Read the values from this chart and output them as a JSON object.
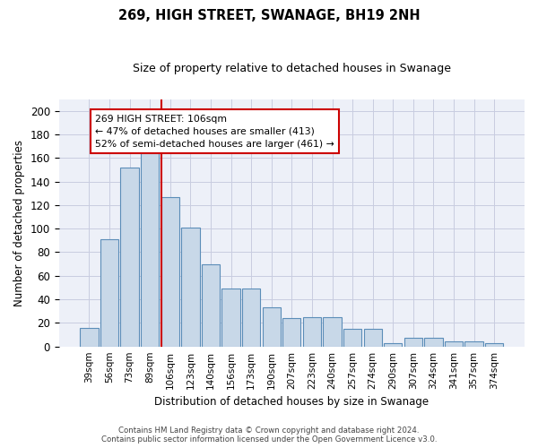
{
  "title": "269, HIGH STREET, SWANAGE, BH19 2NH",
  "subtitle": "Size of property relative to detached houses in Swanage",
  "xlabel": "Distribution of detached houses by size in Swanage",
  "ylabel": "Number of detached properties",
  "bar_labels": [
    "39sqm",
    "56sqm",
    "73sqm",
    "89sqm",
    "106sqm",
    "123sqm",
    "140sqm",
    "156sqm",
    "173sqm",
    "190sqm",
    "207sqm",
    "223sqm",
    "240sqm",
    "257sqm",
    "274sqm",
    "290sqm",
    "307sqm",
    "324sqm",
    "341sqm",
    "357sqm",
    "374sqm"
  ],
  "bar_values": [
    16,
    91,
    152,
    165,
    127,
    101,
    70,
    49,
    49,
    33,
    24,
    25,
    25,
    15,
    15,
    3,
    7,
    7,
    4,
    4,
    3
  ],
  "bar_color": "#c8d8e8",
  "bar_edge_color": "#5b8db8",
  "grid_color": "#c8cce0",
  "bg_color": "#edf0f8",
  "red_line_index": 4,
  "annotation_text": "269 HIGH STREET: 106sqm\n← 47% of detached houses are smaller (413)\n52% of semi-detached houses are larger (461) →",
  "annotation_box_color": "#ffffff",
  "annotation_box_edge": "#cc0000",
  "footer_line1": "Contains HM Land Registry data © Crown copyright and database right 2024.",
  "footer_line2": "Contains public sector information licensed under the Open Government Licence v3.0.",
  "ylim": [
    0,
    210
  ],
  "yticks": [
    0,
    20,
    40,
    60,
    80,
    100,
    120,
    140,
    160,
    180,
    200
  ]
}
